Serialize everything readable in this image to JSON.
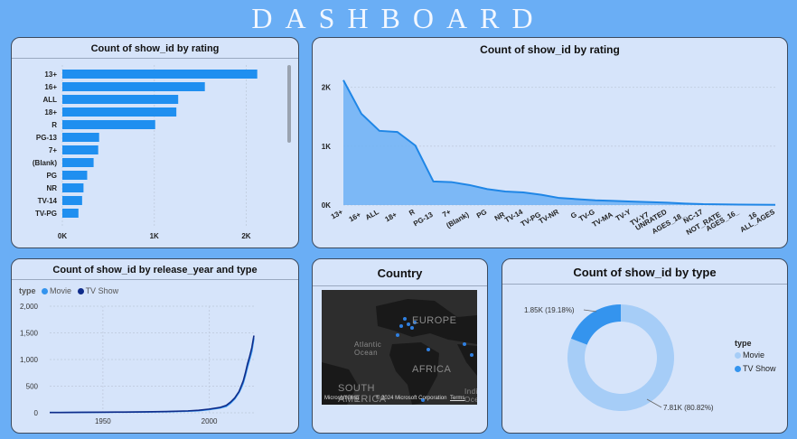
{
  "dashboard_title": "DASHBOARD",
  "colors": {
    "bar": "#1f8ff0",
    "area": "#6cb0f5",
    "line": "#1f86e6",
    "movie": "#a6cdf7",
    "tvshow": "#3494ee",
    "tv_line": "#0f2c8a"
  },
  "rating_bar": {
    "title": "Count of show_id by rating",
    "chart_data": {
      "type": "bar",
      "orientation": "horizontal",
      "categories": [
        "13+",
        "16+",
        "ALL",
        "18+",
        "R",
        "PG-13",
        "7+",
        "(Blank)",
        "PG",
        "NR",
        "TV-14",
        "TV-PG"
      ],
      "values": [
        2120,
        1550,
        1260,
        1240,
        1010,
        400,
        390,
        340,
        270,
        230,
        215,
        175
      ],
      "xticks": [
        "0K",
        "1K",
        "2K"
      ],
      "xlim": [
        0,
        2300
      ]
    }
  },
  "rating_area": {
    "title": "Count of show_id by rating",
    "chart_data": {
      "type": "area",
      "categories": [
        "13+",
        "16+",
        "ALL",
        "18+",
        "R",
        "PG-13",
        "7+",
        "(Blank)",
        "PG",
        "NR",
        "TV-14",
        "TV-PG",
        "TV-NR",
        "G",
        "TV-G",
        "TV-MA",
        "TV-Y",
        "TV-Y7",
        "UNRATED",
        "AGES_18_",
        "NC-17",
        "NOT_RATE",
        "AGES_16_",
        "16",
        "ALL_AGES"
      ],
      "values": [
        2120,
        1550,
        1260,
        1240,
        1010,
        400,
        390,
        340,
        270,
        230,
        215,
        175,
        120,
        100,
        80,
        70,
        60,
        50,
        40,
        25,
        15,
        12,
        8,
        5,
        3
      ],
      "yticks": [
        "0K",
        "1K",
        "2K"
      ],
      "ylim": [
        0,
        2300
      ]
    }
  },
  "release_line": {
    "title": "Count of show_id by release_year and type",
    "legend_label": "type",
    "chart_data": {
      "type": "line",
      "x": [
        1925,
        1930,
        1940,
        1950,
        1960,
        1970,
        1980,
        1990,
        1995,
        2000,
        2005,
        2008,
        2010,
        2012,
        2014,
        2015,
        2016,
        2017,
        2018,
        2019,
        2020,
        2021
      ],
      "series": [
        {
          "name": "Movie",
          "values": [
            5,
            5,
            8,
            10,
            12,
            15,
            20,
            30,
            40,
            60,
            90,
            120,
            180,
            260,
            380,
            460,
            560,
            700,
            860,
            1000,
            1150,
            1400
          ]
        },
        {
          "name": "TV Show",
          "values": [
            5,
            5,
            10,
            12,
            14,
            18,
            24,
            36,
            48,
            70,
            100,
            140,
            200,
            280,
            400,
            500,
            600,
            750,
            920,
            1060,
            1220,
            1450
          ]
        }
      ],
      "xticks": [
        "1950",
        "2000"
      ],
      "yticks": [
        "0",
        "500",
        "1,000",
        "1,500",
        "2,000"
      ],
      "ylim": [
        0,
        2000
      ]
    }
  },
  "country_map": {
    "title": "Country",
    "labels": {
      "europe": "EUROPE",
      "atlantic": "Atlantic Ocean",
      "africa": "AFRICA",
      "south_america": "SOUTH AMERICA",
      "indian": "India Oce"
    },
    "attribution": "© 2024 Microsoft Corporation",
    "terms": "Terms",
    "logo": "Microsoft Bing"
  },
  "type_donut": {
    "title": "Count of show_id by type",
    "legend_title": "type",
    "chart_data": {
      "type": "pie",
      "categories": [
        "Movie",
        "TV Show"
      ],
      "values": [
        7810,
        1850
      ],
      "percent": [
        80.82,
        19.18
      ],
      "labels": [
        "7.81K (80.82%)",
        "1.85K (19.18%)"
      ]
    }
  }
}
